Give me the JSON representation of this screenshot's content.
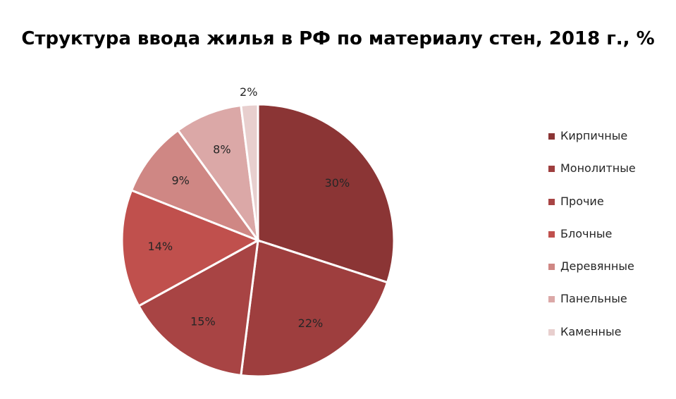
{
  "chart_data": {
    "type": "pie",
    "title": "Структура ввода жилья в РФ по материалу стен, 2018 г., %",
    "slices": [
      {
        "label": "Кирпичные",
        "value": 30,
        "display": "30%",
        "color": "#8B3535"
      },
      {
        "label": "Монолитные",
        "value": 22,
        "display": "22%",
        "color": "#9E3E3E"
      },
      {
        "label": "Прочие",
        "value": 15,
        "display": "15%",
        "color": "#A84444"
      },
      {
        "label": "Блочные",
        "value": 14,
        "display": "14%",
        "color": "#C0504D"
      },
      {
        "label": "Деревянные",
        "value": 9,
        "display": "9%",
        "color": "#CF8784"
      },
      {
        "label": "Панельные",
        "value": 8,
        "display": "8%",
        "color": "#DBA8A7"
      },
      {
        "label": "Каменные",
        "value": 2,
        "display": "2%",
        "color": "#E8CFCE"
      }
    ],
    "legend_position": "right"
  }
}
